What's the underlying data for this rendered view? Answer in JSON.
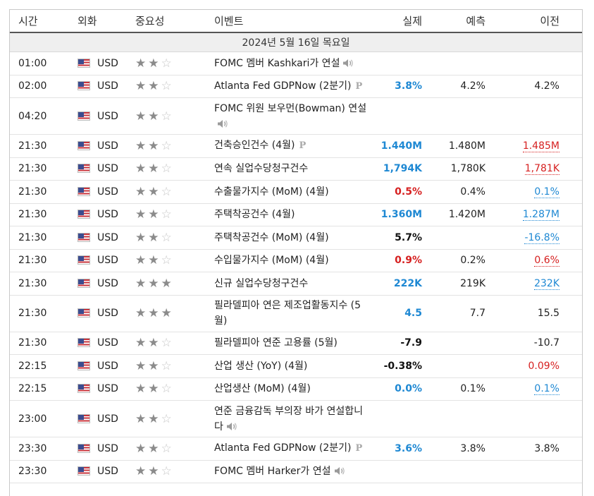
{
  "header": {
    "time": "시간",
    "currency": "외화",
    "importance": "중요성",
    "event": "이벤트",
    "actual": "실제",
    "forecast": "예측",
    "previous": "이전"
  },
  "date_label": "2024년 5월 16일 목요일",
  "colors": {
    "positive": "#1e88d3",
    "negative": "#d62020",
    "star_on": "#8b8b8b",
    "star_off": "#c6c6c6"
  },
  "rows": [
    {
      "time": "01:00",
      "cur": "USD",
      "stars": 2,
      "event": "FOMC 멤버 Kashkari가 연설",
      "icon": "speaker-icon",
      "actual": "",
      "actual_color": "black",
      "forecast": "",
      "previous": "",
      "previous_style": "plain"
    },
    {
      "time": "02:00",
      "cur": "USD",
      "stars": 2,
      "event": "Atlanta Fed GDPNow (2분기)",
      "icon": "preliminary-icon",
      "actual": "3.8%",
      "actual_color": "blue",
      "forecast": "4.2%",
      "previous": "4.2%",
      "previous_style": "plain"
    },
    {
      "time": "04:20",
      "cur": "USD",
      "stars": 2,
      "event": "FOMC 위원 보우먼(Bowman) 연설",
      "icon": "speaker-icon",
      "actual": "",
      "actual_color": "black",
      "forecast": "",
      "previous": "",
      "previous_style": "plain",
      "tall": true
    },
    {
      "time": "21:30",
      "cur": "USD",
      "stars": 2,
      "event": "건축승인건수 (4월)",
      "icon": "preliminary-icon",
      "actual": "1.440M",
      "actual_color": "blue",
      "forecast": "1.480M",
      "previous": "1.485M",
      "previous_style": "link-red"
    },
    {
      "time": "21:30",
      "cur": "USD",
      "stars": 2,
      "event": "연속 실업수당청구건수",
      "icon": "",
      "actual": "1,794K",
      "actual_color": "blue",
      "forecast": "1,780K",
      "previous": "1,781K",
      "previous_style": "link-red"
    },
    {
      "time": "21:30",
      "cur": "USD",
      "stars": 2,
      "event": "수출물가지수 (MoM) (4월)",
      "icon": "",
      "actual": "0.5%",
      "actual_color": "red",
      "forecast": "0.4%",
      "previous": "0.1%",
      "previous_style": "link-blue"
    },
    {
      "time": "21:30",
      "cur": "USD",
      "stars": 2,
      "event": "주택착공건수 (4월)",
      "icon": "",
      "actual": "1.360M",
      "actual_color": "blue",
      "forecast": "1.420M",
      "previous": "1.287M",
      "previous_style": "link-blue"
    },
    {
      "time": "21:30",
      "cur": "USD",
      "stars": 2,
      "event": "주택착공건수 (MoM) (4월)",
      "icon": "",
      "actual": "5.7%",
      "actual_color": "black",
      "forecast": "",
      "previous": "-16.8%",
      "previous_style": "link-blue"
    },
    {
      "time": "21:30",
      "cur": "USD",
      "stars": 2,
      "event": "수입물가지수 (MoM) (4월)",
      "icon": "",
      "actual": "0.9%",
      "actual_color": "red",
      "forecast": "0.2%",
      "previous": "0.6%",
      "previous_style": "link-red"
    },
    {
      "time": "21:30",
      "cur": "USD",
      "stars": 3,
      "event": "신규 실업수당청구건수",
      "icon": "",
      "actual": "222K",
      "actual_color": "blue",
      "forecast": "219K",
      "previous": "232K",
      "previous_style": "link-blue"
    },
    {
      "time": "21:30",
      "cur": "USD",
      "stars": 3,
      "event": "필라델피아 연은 제조업활동지수 (5월)",
      "icon": "",
      "actual": "4.5",
      "actual_color": "blue",
      "forecast": "7.7",
      "previous": "15.5",
      "previous_style": "plain",
      "tall": true
    },
    {
      "time": "21:30",
      "cur": "USD",
      "stars": 2,
      "event": "필라델피아 연준 고용률 (5월)",
      "icon": "",
      "actual": "-7.9",
      "actual_color": "black",
      "forecast": "",
      "previous": "-10.7",
      "previous_style": "plain"
    },
    {
      "time": "22:15",
      "cur": "USD",
      "stars": 2,
      "event": "산업 생산 (YoY) (4월)",
      "icon": "",
      "actual": "-0.38%",
      "actual_color": "black",
      "forecast": "",
      "previous": "0.09%",
      "previous_style": "red"
    },
    {
      "time": "22:15",
      "cur": "USD",
      "stars": 2,
      "event": "산업생산 (MoM) (4월)",
      "icon": "",
      "actual": "0.0%",
      "actual_color": "blue",
      "forecast": "0.1%",
      "previous": "0.1%",
      "previous_style": "link-blue"
    },
    {
      "time": "23:00",
      "cur": "USD",
      "stars": 2,
      "event": "연준 금융감독 부의장 바가 연설합니다",
      "icon": "speaker-icon",
      "actual": "",
      "actual_color": "black",
      "forecast": "",
      "previous": "",
      "previous_style": "plain",
      "tall": true
    },
    {
      "time": "23:30",
      "cur": "USD",
      "stars": 2,
      "event": "Atlanta Fed GDPNow (2분기)",
      "icon": "preliminary-icon",
      "actual": "3.6%",
      "actual_color": "blue",
      "forecast": "3.8%",
      "previous": "3.8%",
      "previous_style": "plain"
    },
    {
      "time": "23:30",
      "cur": "USD",
      "stars": 2,
      "event": "FOMC 멤버 Harker가 연설",
      "icon": "speaker-icon",
      "actual": "",
      "actual_color": "black",
      "forecast": "",
      "previous": "",
      "previous_style": "plain"
    }
  ]
}
